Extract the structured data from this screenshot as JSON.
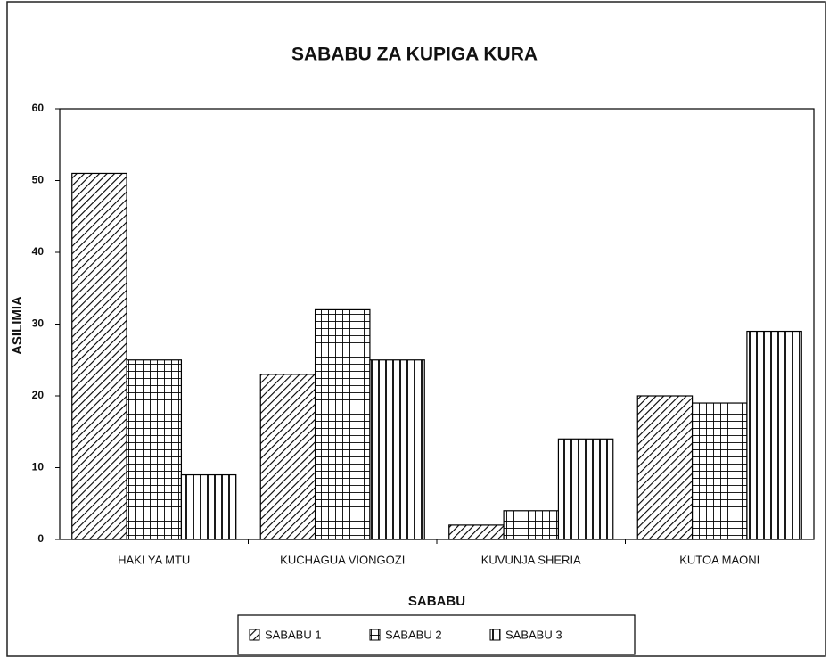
{
  "chart_data": {
    "type": "bar",
    "title": "SABABU ZA KUPIGA KURA",
    "xlabel": "SABABU",
    "ylabel": "ASILIMIA",
    "categories": [
      "HAKI YA MTU",
      "KUCHAGUA VIONGOZI",
      "KUVUNJA SHERIA",
      "KUTOA MAONI"
    ],
    "series": [
      {
        "name": "SABABU 1",
        "color": "#000000",
        "pattern": "diagonal",
        "values": [
          51,
          23,
          2,
          20
        ]
      },
      {
        "name": "SABABU 2",
        "color": "#000000",
        "pattern": "grid",
        "values": [
          25,
          32,
          4,
          19
        ]
      },
      {
        "name": "SABABU 3",
        "color": "#000000",
        "pattern": "vertical",
        "values": [
          9,
          25,
          14,
          29
        ]
      }
    ],
    "ylim": [
      0,
      60
    ],
    "yticks": [
      0,
      10,
      20,
      30,
      40,
      50,
      60
    ],
    "grid": false,
    "legend": "bottom"
  }
}
